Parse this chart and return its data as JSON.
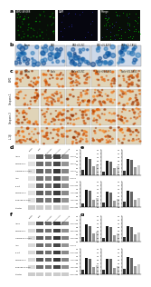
{
  "panel_labels": [
    "a",
    "b",
    "c",
    "d",
    "e",
    "f",
    "g"
  ],
  "panel_a_sublabels": [
    "AIM2-AF488",
    "DAPI",
    "Merge"
  ],
  "panel_b_groups": [
    "Sham",
    "SAB",
    "SAB+LV-NC",
    "SAB+LV-AIM2",
    "SAB+LV-CAS3"
  ],
  "panel_c_rows": [
    "AIM2",
    "Caspase-1",
    "Caspase-3",
    "IL-1b"
  ],
  "panel_c_groups": [
    "Sham",
    "Scab",
    "Scab+LV-NC",
    "Scab+LV-AIM2",
    "Scab+LV-CAS3"
  ],
  "wb_rows_d": [
    "AIM2",
    "Caspase-1",
    "Caspase-3 p20",
    "ASC",
    "IL-1b",
    "Caspase-3",
    "Cleaved-3-p20",
    "b-actin"
  ],
  "wb_rows_f": [
    "AIM2",
    "Caspase-1",
    "Caspase-3 p20",
    "ASC",
    "IL-1b",
    "Caspase-3",
    "Cleaved-3-p20",
    "b-actin"
  ],
  "lane_names": [
    "Sham",
    "SAB",
    "SAB+LV-NC",
    "SAB+LV-AIM2",
    "SAB+LV-CAS3"
  ],
  "bar_colors_5": [
    "#333333",
    "#111111",
    "#666666",
    "#999999",
    "#cccccc"
  ],
  "fig_bg": "#ffffff",
  "tissue_bg": "#e8dcc8",
  "tissue_bg_b": "#ddeeff",
  "wb_bg": "#d8d8d8",
  "dark_panel": "#0a0a0a",
  "bar_vals_e": [
    [
      0.3,
      1.0,
      0.9,
      0.5,
      0.6
    ],
    [
      0.2,
      0.8,
      0.75,
      0.4,
      0.5
    ],
    [
      0.25,
      0.9,
      0.85,
      0.45,
      0.55
    ],
    [
      0.2,
      0.95,
      0.9,
      0.4,
      0.5
    ],
    [
      0.25,
      0.85,
      0.8,
      0.38,
      0.48
    ],
    [
      0.3,
      0.9,
      0.88,
      0.42,
      0.52
    ]
  ],
  "bar_vals_g": [
    [
      0.25,
      0.95,
      0.88,
      0.45,
      0.55
    ],
    [
      0.2,
      0.85,
      0.8,
      0.38,
      0.48
    ],
    [
      0.28,
      0.88,
      0.83,
      0.42,
      0.52
    ],
    [
      0.22,
      0.92,
      0.87,
      0.4,
      0.5
    ],
    [
      0.26,
      0.87,
      0.82,
      0.36,
      0.46
    ],
    [
      0.3,
      0.93,
      0.9,
      0.44,
      0.54
    ]
  ],
  "wb_band_intensities_d": [
    [
      0.88,
      0.35,
      0.42,
      0.25,
      0.55
    ],
    [
      0.88,
      0.42,
      0.48,
      0.28,
      0.58
    ],
    [
      0.88,
      0.38,
      0.45,
      0.22,
      0.52
    ],
    [
      0.88,
      0.45,
      0.5,
      0.3,
      0.6
    ],
    [
      0.88,
      0.4,
      0.46,
      0.26,
      0.56
    ],
    [
      0.88,
      0.36,
      0.43,
      0.24,
      0.54
    ],
    [
      0.88,
      0.44,
      0.48,
      0.28,
      0.58
    ],
    [
      0.8,
      0.8,
      0.8,
      0.8,
      0.8
    ]
  ],
  "wb_band_intensities_f": [
    [
      0.85,
      0.32,
      0.4,
      0.22,
      0.52
    ],
    [
      0.85,
      0.4,
      0.45,
      0.26,
      0.56
    ],
    [
      0.85,
      0.36,
      0.42,
      0.2,
      0.5
    ],
    [
      0.85,
      0.42,
      0.48,
      0.28,
      0.58
    ],
    [
      0.85,
      0.38,
      0.44,
      0.24,
      0.54
    ],
    [
      0.85,
      0.34,
      0.41,
      0.22,
      0.52
    ],
    [
      0.85,
      0.42,
      0.46,
      0.26,
      0.56
    ],
    [
      0.8,
      0.8,
      0.8,
      0.8,
      0.8
    ]
  ]
}
